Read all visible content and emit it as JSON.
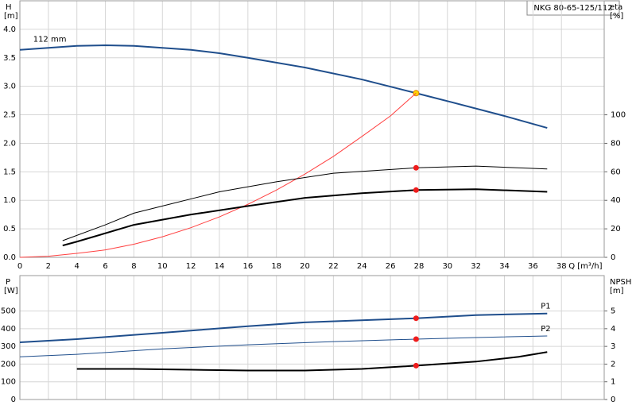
{
  "title": "NKG 80-65-125/112",
  "chart_data": [
    {
      "type": "line",
      "y_label": "H",
      "y_unit": "[m]",
      "y2_label": "eta",
      "y2_unit": "[%]",
      "x_label": "Q [m³/h]",
      "xlim": [
        0,
        41
      ],
      "xticks": [
        0,
        2,
        4,
        6,
        8,
        10,
        12,
        14,
        16,
        18,
        20,
        22,
        24,
        26,
        28,
        30,
        32,
        34,
        36,
        38
      ],
      "ylim": [
        0,
        4.5
      ],
      "yticks": [
        {
          "value": 0,
          "label": "0.0"
        },
        {
          "value": 0.5,
          "label": "0.5"
        },
        {
          "value": 1,
          "label": "1.0"
        },
        {
          "value": 1.5,
          "label": "1.5"
        },
        {
          "value": 2,
          "label": "2.0"
        },
        {
          "value": 2.5,
          "label": "2.5"
        },
        {
          "value": 3,
          "label": "3.0"
        },
        {
          "value": 3.5,
          "label": "3.5"
        },
        {
          "value": 4,
          "label": "4.0"
        }
      ],
      "y2lim": [
        0,
        180
      ],
      "y2ticks": [
        0,
        20,
        40,
        60,
        80,
        100
      ],
      "grid": true,
      "operating_point": 27.8,
      "series": [
        {
          "name": "112 mm",
          "color": "#1f4e8c",
          "width": 2,
          "x": [
            0,
            4,
            6,
            8,
            12,
            14,
            16,
            20,
            24,
            27.8,
            30,
            34,
            37
          ],
          "values": [
            3.64,
            3.71,
            3.72,
            3.71,
            3.64,
            3.58,
            3.5,
            3.33,
            3.12,
            2.88,
            2.74,
            2.48,
            2.27
          ],
          "marker": "#ffd700"
        },
        {
          "color": "#ff4040",
          "width": 1,
          "x": [
            0,
            2,
            4,
            6,
            8,
            10,
            12,
            14,
            16,
            18,
            20,
            22,
            24,
            26,
            27.8
          ],
          "values": [
            0,
            0.02,
            0.07,
            0.13,
            0.23,
            0.36,
            0.52,
            0.71,
            0.93,
            1.18,
            1.46,
            1.77,
            2.12,
            2.48,
            2.88
          ]
        },
        {
          "color": "#000000",
          "width": 1,
          "axis": "y2",
          "x": [
            3,
            6,
            8,
            12,
            14,
            18,
            22,
            27.8,
            32,
            37
          ],
          "values": [
            11.7,
            22.8,
            31,
            41,
            46,
            53,
            59,
            62.8,
            64,
            62
          ],
          "marker": "#ee1c1c"
        },
        {
          "color": "#000000",
          "width": 2,
          "axis": "y2",
          "x": [
            3,
            4,
            8,
            12,
            16,
            20,
            24,
            27.8,
            32,
            37
          ],
          "values": [
            8.3,
            11,
            22.8,
            30,
            36,
            41.7,
            45,
            47.2,
            47.8,
            46
          ],
          "marker": "#ee1c1c"
        }
      ]
    },
    {
      "type": "line",
      "y_label": "P",
      "y_unit": "[W]",
      "y2_label": "NPSH",
      "y2_unit": "[m]",
      "xlim": [
        0,
        41
      ],
      "ylim": [
        0,
        700
      ],
      "yticks": [
        0,
        100,
        200,
        300,
        400,
        500
      ],
      "y2lim": [
        0,
        7
      ],
      "y2ticks": [
        0,
        1,
        2,
        3,
        4,
        5
      ],
      "grid": true,
      "operating_point": 27.8,
      "series": [
        {
          "name": "P1",
          "color": "#1f4e8c",
          "width": 2,
          "x": [
            0,
            4,
            10,
            16,
            20,
            27.8,
            32,
            37
          ],
          "values": [
            323,
            341,
            377,
            414,
            436,
            459,
            477,
            486
          ],
          "marker": "#ee1c1c"
        },
        {
          "name": "P2",
          "color": "#1f4e8c",
          "width": 1,
          "x": [
            0,
            4,
            10,
            16,
            22,
            27.8,
            32,
            37
          ],
          "values": [
            241,
            255,
            286,
            309,
            327,
            341,
            350,
            359
          ],
          "marker": "#ee1c1c"
        },
        {
          "color": "#000000",
          "width": 2,
          "axis": "y2",
          "x": [
            4,
            8,
            12,
            16,
            20,
            24,
            27.8,
            32,
            35,
            37
          ],
          "values": [
            1.73,
            1.73,
            1.68,
            1.64,
            1.64,
            1.73,
            1.91,
            2.14,
            2.41,
            2.68
          ],
          "marker": "#ee1c1c"
        }
      ]
    }
  ]
}
